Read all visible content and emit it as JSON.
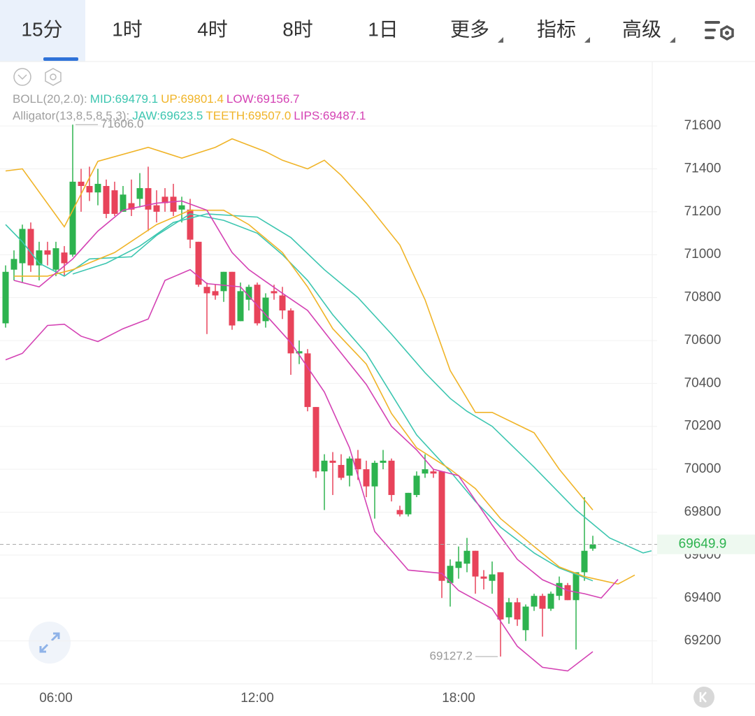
{
  "tabs": [
    "15分",
    "1时",
    "4时",
    "8时",
    "1日",
    "更多",
    "指标",
    "高级"
  ],
  "chart_data": {
    "type": "candlestick",
    "categories": [
      null,
      null,
      null,
      null,
      null,
      null,
      "06:00",
      null,
      null,
      null,
      null,
      null,
      null,
      null,
      null,
      null,
      null,
      null,
      null,
      null,
      null,
      null,
      null,
      null,
      null,
      null,
      null,
      null,
      null,
      null,
      "12:00",
      null,
      null,
      null,
      null,
      null,
      null,
      null,
      null,
      null,
      null,
      null,
      null,
      null,
      null,
      null,
      null,
      null,
      null,
      null,
      null,
      null,
      null,
      null,
      "18:00",
      null,
      null,
      null,
      null,
      null,
      null,
      null,
      null,
      null,
      null,
      null,
      null,
      null,
      null,
      null,
      null
    ],
    "open": [
      70680,
      70930,
      70960,
      71120,
      70950,
      71020,
      70930,
      71010,
      71000,
      71340,
      71320,
      71290,
      71320,
      71300,
      71200,
      71240,
      71260,
      71310,
      71230,
      71270,
      71270,
      71210,
      71210,
      71060,
      70850,
      70830,
      70830,
      70920,
      70690,
      70790,
      70860,
      70690,
      70830,
      70810,
      70740,
      70540,
      70540,
      70290,
      69990,
      70040,
      70020,
      69970,
      70050,
      70000,
      69920,
      70030,
      70040,
      69810,
      69790,
      69880,
      69980,
      69990,
      69990,
      69470,
      69540,
      69560,
      69620,
      69500,
      69480,
      69520,
      69310,
      69380,
      69250,
      69360,
      69410,
      69350,
      69410,
      69460,
      69390,
      69520,
      69630
    ],
    "high": [
      70950,
      71020,
      71140,
      71150,
      71060,
      71060,
      71060,
      71040,
      71606.0,
      71400,
      71410,
      71400,
      71350,
      71340,
      71320,
      71350,
      71380,
      71410,
      71300,
      71310,
      71330,
      71270,
      71260,
      71060,
      70870,
      70860,
      70920,
      70920,
      70870,
      70860,
      70870,
      70820,
      70860,
      70850,
      70750,
      70600,
      70560,
      70290,
      70070,
      70080,
      70070,
      70060,
      70090,
      70040,
      70040,
      70090,
      70050,
      69830,
      69890,
      69990,
      70070,
      70000,
      69990,
      69580,
      69640,
      69680,
      69620,
      69530,
      69570,
      69520,
      69400,
      69400,
      69370,
      69420,
      69420,
      69430,
      69500,
      69470,
      69520,
      69870,
      69690
    ],
    "low": [
      70660,
      70880,
      70870,
      70920,
      70880,
      70950,
      70900,
      70900,
      70990,
      71200,
      71250,
      71230,
      71170,
      71180,
      71200,
      71180,
      71220,
      71110,
      71150,
      71200,
      71180,
      71150,
      71030,
      70850,
      70630,
      70790,
      70780,
      70650,
      70690,
      70740,
      70670,
      70660,
      70790,
      70700,
      70440,
      70490,
      70270,
      69960,
      69810,
      69880,
      69950,
      69920,
      69950,
      69870,
      69770,
      70000,
      69850,
      69780,
      69780,
      69870,
      69960,
      69960,
      69400,
      69360,
      69490,
      69520,
      69420,
      69440,
      69420,
      69127.2,
      69280,
      69270,
      69200,
      69340,
      69220,
      69340,
      69390,
      69390,
      69160,
      69480,
      69620
    ],
    "close": [
      70920,
      70980,
      71120,
      70950,
      71020,
      71000,
      71030,
      70960,
      71340,
      71320,
      71290,
      71330,
      71190,
      71190,
      71280,
      71210,
      71310,
      71210,
      71200,
      71240,
      71200,
      71230,
      71070,
      70860,
      70820,
      70810,
      70920,
      70670,
      70830,
      70850,
      70680,
      70800,
      70820,
      70740,
      70540,
      70550,
      70290,
      69990,
      70040,
      70030,
      69960,
      70050,
      70000,
      69920,
      70030,
      70040,
      69880,
      69790,
      69890,
      69970,
      70000,
      69980,
      69480,
      69550,
      69570,
      69620,
      69500,
      69490,
      69510,
      69300,
      69380,
      69300,
      69360,
      69410,
      69350,
      69420,
      69470,
      69390,
      69520,
      69620,
      69649.9
    ],
    "up_color": "#2db34f",
    "down_color": "#e8435a",
    "lines": [
      {
        "color": "#3cc6b0",
        "x": [
          0,
          2,
          4,
          7,
          10,
          15,
          18,
          22,
          26,
          30,
          33,
          36,
          39,
          43,
          46,
          49,
          53,
          56,
          59,
          63,
          66,
          70
        ],
        "values": [
          71140,
          71060,
          70960,
          70900,
          70980,
          70990,
          71090,
          71190,
          71160,
          71100,
          71000,
          70880,
          70720,
          70540,
          70350,
          70160,
          69990,
          69850,
          69730,
          69610,
          69540,
          69480
        ]
      },
      {
        "color": "#f0b428",
        "x": [
          0,
          2,
          7,
          11,
          17,
          21,
          25,
          27,
          31,
          33,
          36,
          38,
          40,
          43,
          47,
          50,
          53,
          56,
          58,
          63,
          66,
          70
        ],
        "values": [
          71390,
          71400,
          71130,
          71435,
          71500,
          71450,
          71500,
          71540,
          71480,
          71440,
          71400,
          71440,
          71370,
          71240,
          71045,
          70790,
          70460,
          70265,
          70265,
          70170,
          70000,
          69810
        ]
      },
      {
        "color": "#d442b4",
        "x": [
          0,
          2,
          5,
          7,
          9,
          11,
          14,
          17,
          19,
          22,
          24,
          28,
          31,
          34,
          38,
          41,
          44,
          48,
          52,
          54,
          58,
          61,
          64,
          67,
          70
        ],
        "values": [
          70510,
          70540,
          70670,
          70676,
          70620,
          70595,
          70655,
          70700,
          70880,
          70930,
          70865,
          70850,
          70720,
          70590,
          70360,
          70100,
          69710,
          69530,
          69515,
          69435,
          69350,
          69175,
          69077,
          69060,
          69150
        ]
      },
      {
        "color": "#3cc6b0",
        "x": [
          8,
          12,
          16,
          20,
          24,
          30,
          34,
          38,
          42,
          46,
          50,
          53,
          55,
          58,
          63,
          68,
          72,
          76,
          77
        ],
        "values": [
          70910,
          70960,
          71040,
          71150,
          71190,
          71175,
          71080,
          70930,
          70800,
          70630,
          70450,
          70330,
          70270,
          70200,
          70010,
          69810,
          69680,
          69610,
          69620
        ]
      },
      {
        "color": "#f0b428",
        "x": [
          1,
          5,
          8,
          13,
          18,
          22,
          26,
          29,
          33,
          36,
          39,
          43,
          46,
          49,
          53,
          56,
          59,
          63,
          66,
          69,
          73,
          75
        ],
        "values": [
          70900,
          70900,
          70930,
          71010,
          71140,
          71207,
          71207,
          71140,
          71010,
          70850,
          70655,
          70490,
          70260,
          70100,
          70000,
          69910,
          69770,
          69640,
          69545,
          69500,
          69465,
          69507
        ]
      },
      {
        "color": "#d442b4",
        "x": [
          1,
          4,
          8,
          11,
          14,
          18,
          21,
          24,
          27,
          29,
          33,
          36,
          39,
          43,
          46,
          49,
          51,
          54,
          58,
          61,
          64,
          67,
          69,
          71,
          73
        ],
        "values": [
          70880,
          70850,
          70980,
          71110,
          71207,
          71240,
          71250,
          71207,
          71010,
          70930,
          70820,
          70740,
          70590,
          70395,
          70200,
          70090,
          70000,
          69970,
          69740,
          69580,
          69485,
          69435,
          69420,
          69400,
          69487
        ]
      }
    ],
    "legend": [
      [
        {
          "text": "BOLL(20,2.0):",
          "color": "#a0a0a0"
        },
        {
          "text": "MID:69479.1",
          "color": "#3cc6b0"
        },
        {
          "text": "UP:69801.4",
          "color": "#f0b428"
        },
        {
          "text": "LOW:69156.7",
          "color": "#d442b4"
        }
      ],
      [
        {
          "text": "Alligator(13,8,5,8,5,3):",
          "color": "#a0a0a0"
        },
        {
          "text": "JAW:69623.5",
          "color": "#3cc6b0"
        },
        {
          "text": "TEETH:69507.0",
          "color": "#f0b428"
        },
        {
          "text": "LIPS:69487.1",
          "color": "#d442b4"
        }
      ]
    ],
    "high_label": {
      "value": 71606.0,
      "label": "71606.0"
    },
    "low_label": {
      "value": 69127.2,
      "label": "69127.2"
    },
    "last_price": 69649.9,
    "ylim": [
      69000,
      71900
    ],
    "yticks": [
      69200,
      69400,
      69600,
      69800,
      70000,
      70200,
      70400,
      70600,
      70800,
      71000,
      71200,
      71400,
      71600
    ],
    "grid": true
  }
}
